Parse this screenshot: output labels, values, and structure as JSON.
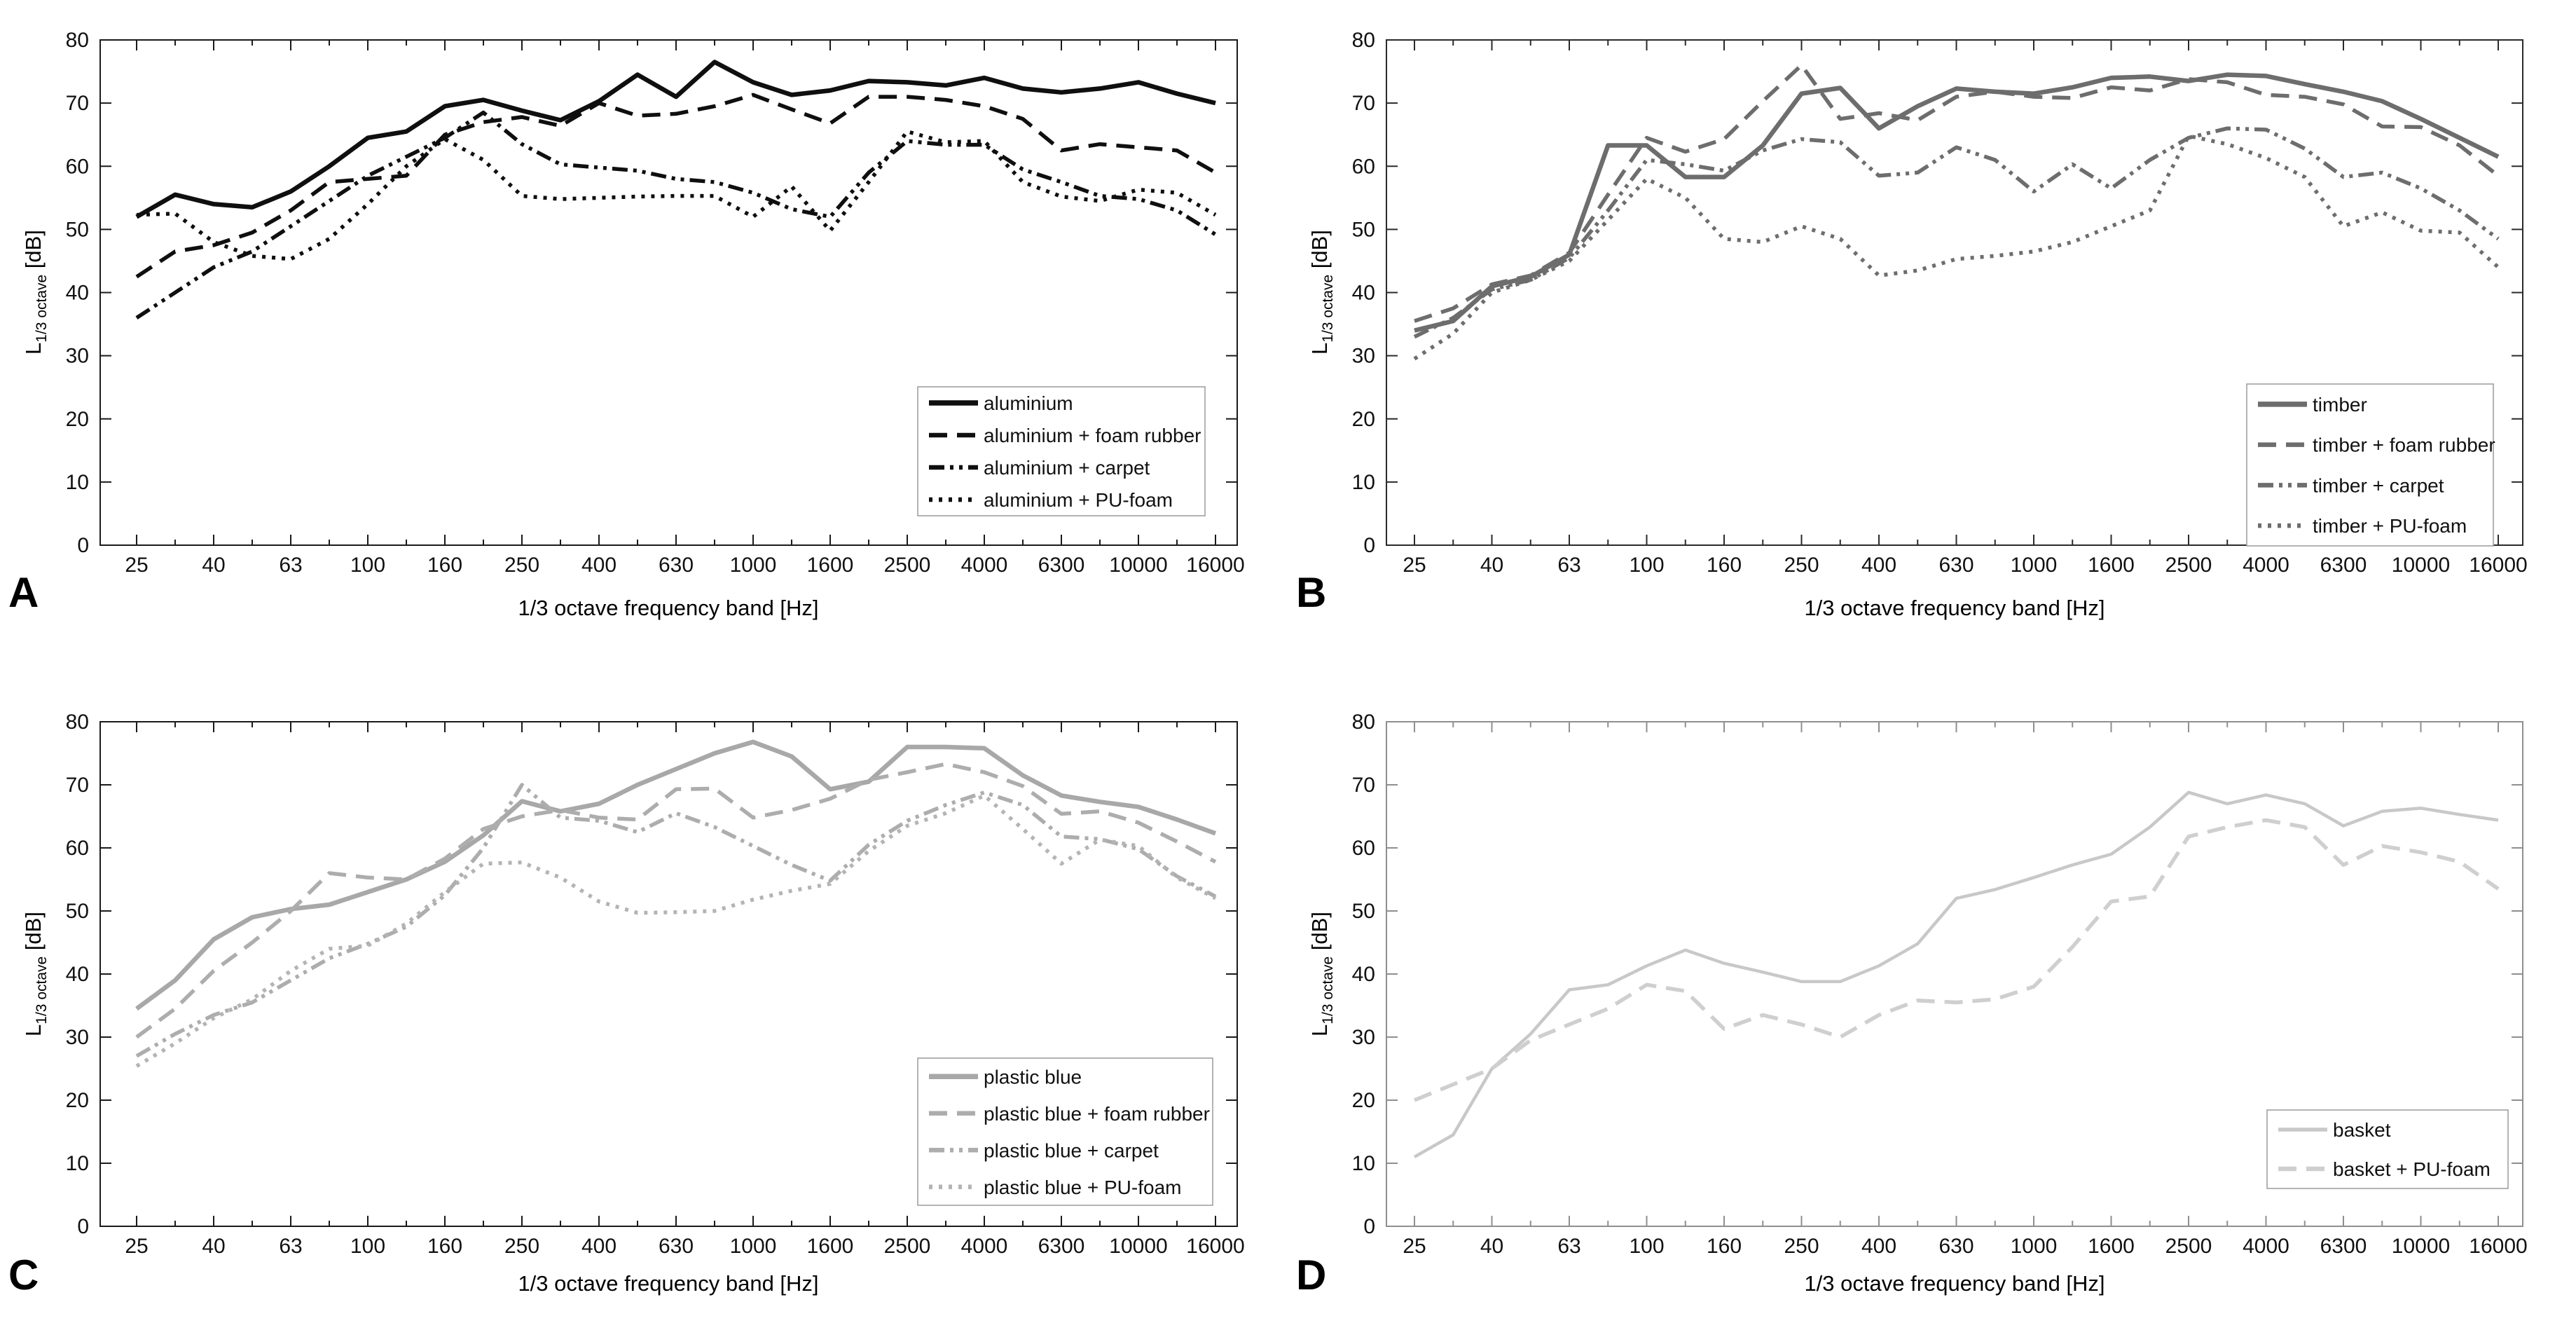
{
  "figure": {
    "xlabel": "1/3 octave frequency band [Hz]",
    "ylabel_main": "L",
    "ylabel_sub": "1/3 octave",
    "ylabel_unit": " [dB]",
    "y_tick_labels": [
      "0",
      "10",
      "20",
      "30",
      "40",
      "50",
      "60",
      "70",
      "80"
    ],
    "x_tick_labels": [
      "25",
      "40",
      "63",
      "100",
      "160",
      "250",
      "400",
      "630",
      "1000",
      "1600",
      "2500",
      "4000",
      "6300",
      "10000",
      "16000"
    ]
  },
  "chart_data": [
    {
      "label": "A",
      "type": "line",
      "xlabel": "1/3 octave frequency band [Hz]",
      "ylabel": "L 1/3 octave [dB]",
      "ylim": [
        0,
        80
      ],
      "grid": false,
      "legend_position": "lower right",
      "x_bands": [
        25,
        31.5,
        40,
        50,
        63,
        80,
        100,
        125,
        160,
        200,
        250,
        315,
        400,
        500,
        630,
        800,
        1000,
        1250,
        1600,
        2000,
        2500,
        3150,
        4000,
        5000,
        6300,
        8000,
        10000,
        12500,
        16000
      ],
      "x_tick_labels": [
        "25",
        "40",
        "63",
        "100",
        "160",
        "250",
        "400",
        "630",
        "1000",
        "1600",
        "2500",
        "4000",
        "6300",
        "10000",
        "16000"
      ],
      "series": [
        {
          "name": "aluminium",
          "style": "solid",
          "color": "#0f0f0f",
          "width": 6.5,
          "values": [
            52,
            55.5,
            54,
            53.5,
            56,
            60,
            64.5,
            65.5,
            69.5,
            70.5,
            68.8,
            67.3,
            70.3,
            74.5,
            71,
            76.5,
            73.3,
            71.3,
            72,
            73.5,
            73.3,
            72.8,
            74,
            72.3,
            71.7,
            72.3,
            73.3,
            71.5,
            70
          ]
        },
        {
          "name": "aluminium + foam rubber",
          "style": "dashed",
          "color": "#0f0f0f",
          "width": 5.5,
          "values": [
            42.5,
            46.5,
            47.5,
            49.5,
            53,
            57.5,
            58,
            58.5,
            65,
            67,
            67.8,
            66.4,
            70,
            68,
            68.3,
            69.5,
            71.3,
            69,
            66.8,
            71,
            71,
            70.5,
            69.5,
            67.5,
            62.5,
            63.5,
            63,
            62.5,
            59
          ]
        },
        {
          "name": "aluminium + carpet",
          "style": "dashdot",
          "color": "#0f0f0f",
          "width": 5.5,
          "values": [
            36,
            40,
            44,
            46.5,
            50.5,
            54.5,
            58.5,
            61.5,
            64.5,
            68.5,
            63.5,
            60.3,
            59.8,
            59.3,
            58,
            57.5,
            55.8,
            53.2,
            52,
            59,
            64,
            63.4,
            63.4,
            59.5,
            57.5,
            55.3,
            54.8,
            53,
            49.2
          ]
        },
        {
          "name": "aluminium + PU-foam",
          "style": "dotted",
          "color": "#0f0f0f",
          "width": 5.5,
          "values": [
            52.3,
            52.5,
            48,
            45.8,
            45.3,
            48.5,
            54,
            60,
            64.3,
            61,
            55.3,
            54.8,
            55,
            55.2,
            55.3,
            55.3,
            52,
            56.8,
            49.8,
            57.5,
            65.5,
            63.8,
            64,
            57.5,
            55.2,
            54.5,
            56.3,
            55.8,
            52.3
          ]
        }
      ]
    },
    {
      "label": "B",
      "type": "line",
      "xlabel": "1/3 octave frequency band [Hz]",
      "ylabel": "L 1/3 octave [dB]",
      "ylim": [
        0,
        80
      ],
      "grid": false,
      "legend_position": "lower right",
      "x_bands": [
        25,
        31.5,
        40,
        50,
        63,
        80,
        100,
        125,
        160,
        200,
        250,
        315,
        400,
        500,
        630,
        800,
        1000,
        1250,
        1600,
        2000,
        2500,
        3150,
        4000,
        5000,
        6300,
        8000,
        10000,
        12500,
        16000
      ],
      "x_tick_labels": [
        "25",
        "40",
        "63",
        "100",
        "160",
        "250",
        "400",
        "630",
        "1000",
        "1600",
        "2500",
        "4000",
        "6300",
        "10000",
        "16000"
      ],
      "series": [
        {
          "name": "timber",
          "style": "solid",
          "color": "#6d6d6d",
          "width": 6.5,
          "values": [
            34,
            35.5,
            41,
            42.5,
            46,
            63.3,
            63.3,
            58.3,
            58.3,
            63.3,
            71.5,
            72.4,
            66,
            69.5,
            72.3,
            71.8,
            71.5,
            72.5,
            74,
            74.2,
            73.5,
            74.5,
            74.3,
            73,
            71.8,
            70.3,
            67.5,
            64.5,
            61.5
          ]
        },
        {
          "name": "timber + foam rubber",
          "style": "dashed",
          "color": "#6d6d6d",
          "width": 5.5,
          "values": [
            35.5,
            37.5,
            41.3,
            42.7,
            46.3,
            55.5,
            64.5,
            62.3,
            64.3,
            70.3,
            76,
            67.5,
            68.4,
            67.3,
            71,
            71.8,
            71,
            70.8,
            72.5,
            72,
            73.8,
            73.3,
            71.3,
            71,
            69.8,
            66.3,
            66.2,
            63.3,
            58.5
          ]
        },
        {
          "name": "timber + carpet",
          "style": "dashdot",
          "color": "#6d6d6d",
          "width": 5.5,
          "values": [
            33,
            36,
            40.5,
            42,
            45.5,
            53,
            61,
            60.3,
            59.3,
            62.5,
            64.3,
            63.8,
            58.5,
            59,
            63,
            61,
            56,
            60.3,
            56.5,
            61,
            64.5,
            66,
            65.8,
            62.8,
            58.3,
            59,
            56.5,
            53,
            48.5
          ]
        },
        {
          "name": "timber + PU-foam",
          "style": "dotted",
          "color": "#6d6d6d",
          "width": 5.5,
          "values": [
            29.5,
            33.5,
            40,
            42,
            45,
            51.5,
            58,
            55,
            48.5,
            48,
            50.5,
            48.5,
            42.7,
            43.5,
            45.3,
            45.8,
            46.5,
            48,
            50.5,
            53,
            64.8,
            63.5,
            61.3,
            58.3,
            50.5,
            52.7,
            49.8,
            49.5,
            44
          ]
        }
      ]
    },
    {
      "label": "C",
      "type": "line",
      "xlabel": "1/3 octave frequency band [Hz]",
      "ylabel": "L 1/3 octave [dB]",
      "ylim": [
        0,
        80
      ],
      "grid": false,
      "legend_position": "lower right",
      "x_bands": [
        25,
        31.5,
        40,
        50,
        63,
        80,
        100,
        125,
        160,
        200,
        250,
        315,
        400,
        500,
        630,
        800,
        1000,
        1250,
        1600,
        2000,
        2500,
        3150,
        4000,
        5000,
        6300,
        8000,
        10000,
        12500,
        16000
      ],
      "x_tick_labels": [
        "25",
        "40",
        "63",
        "100",
        "160",
        "250",
        "400",
        "630",
        "1000",
        "1600",
        "2500",
        "4000",
        "6300",
        "10000",
        "16000"
      ],
      "series": [
        {
          "name": "plastic blue",
          "style": "solid",
          "color": "#a8a8a8",
          "width": 6.5,
          "values": [
            34.5,
            39,
            45.5,
            49,
            50.3,
            51,
            53,
            55,
            57.8,
            62,
            67.4,
            65.8,
            67,
            70,
            72.5,
            75,
            76.8,
            74.5,
            69.3,
            70.5,
            76,
            76,
            75.8,
            71.5,
            68.3,
            67.3,
            66.5,
            64.5,
            62.3
          ]
        },
        {
          "name": "plastic blue + foam rubber",
          "style": "dashed",
          "color": "#adadad",
          "width": 5.5,
          "values": [
            30,
            34.5,
            40.5,
            45,
            50,
            56,
            55.3,
            55,
            58.3,
            63,
            65,
            66,
            64.8,
            64.5,
            69.3,
            69.4,
            64.8,
            66,
            67.8,
            70.8,
            72,
            73.3,
            72,
            69.8,
            65.4,
            65.8,
            64,
            61,
            57.8
          ]
        },
        {
          "name": "plastic blue + carpet",
          "style": "dashdot",
          "color": "#adadad",
          "width": 5.5,
          "values": [
            27,
            30.5,
            33.5,
            35.5,
            39,
            42.5,
            44.8,
            47.5,
            52.5,
            60,
            70,
            64.8,
            64.3,
            62.5,
            65.5,
            63.3,
            60.3,
            57.3,
            54.8,
            60.5,
            64.3,
            66.8,
            68.8,
            66.8,
            61.8,
            61.4,
            59.8,
            55.5,
            52.3
          ]
        },
        {
          "name": "plastic blue + PU-foam",
          "style": "dotted",
          "color": "#b4b4b4",
          "width": 5.5,
          "values": [
            25.4,
            29,
            33,
            36,
            40.5,
            44,
            44.5,
            48,
            53,
            57.5,
            57.7,
            55.3,
            51.5,
            49.7,
            49.8,
            50,
            51.8,
            53.2,
            54.3,
            59.5,
            63.5,
            65.5,
            68.3,
            63,
            57.5,
            61.3,
            60.3,
            55.3,
            52
          ]
        }
      ]
    },
    {
      "label": "D",
      "type": "line",
      "xlabel": "1/3 octave frequency band [Hz]",
      "ylabel": "L 1/3 octave [dB]",
      "ylim": [
        0,
        80
      ],
      "grid": false,
      "legend_position": "lower right",
      "x_bands": [
        25,
        31.5,
        40,
        50,
        63,
        80,
        100,
        125,
        160,
        200,
        250,
        315,
        400,
        500,
        630,
        800,
        1000,
        1250,
        1600,
        2000,
        2500,
        3150,
        4000,
        5000,
        6300,
        8000,
        10000,
        12500,
        16000
      ],
      "x_tick_labels": [
        "25",
        "40",
        "63",
        "100",
        "160",
        "250",
        "400",
        "630",
        "1000",
        "1600",
        "2500",
        "4000",
        "6300",
        "10000",
        "16000"
      ],
      "series": [
        {
          "name": "basket",
          "style": "solid",
          "color": "#c8c8c8",
          "width": 4.5,
          "values": [
            11,
            14.5,
            25,
            30.5,
            37.5,
            38.3,
            41.3,
            43.8,
            41.7,
            40.3,
            38.8,
            38.8,
            41.3,
            44.8,
            52,
            53.4,
            55.3,
            57.3,
            59,
            63.3,
            68.8,
            67,
            68.4,
            67,
            63.5,
            65.8,
            66.3,
            65.3,
            64.4
          ]
        },
        {
          "name": "basket + PU-foam",
          "style": "dashed",
          "color": "#cfcfcf",
          "width": 5.5,
          "values": [
            20,
            22.5,
            25,
            29.5,
            32,
            34.5,
            38.3,
            37.3,
            31.3,
            33.5,
            32,
            30,
            33.5,
            35.8,
            35.5,
            36,
            38,
            44.3,
            51.5,
            52.3,
            61.8,
            63.3,
            64.4,
            63.3,
            57.3,
            60.3,
            59.3,
            57.8,
            53.5
          ]
        }
      ]
    }
  ]
}
